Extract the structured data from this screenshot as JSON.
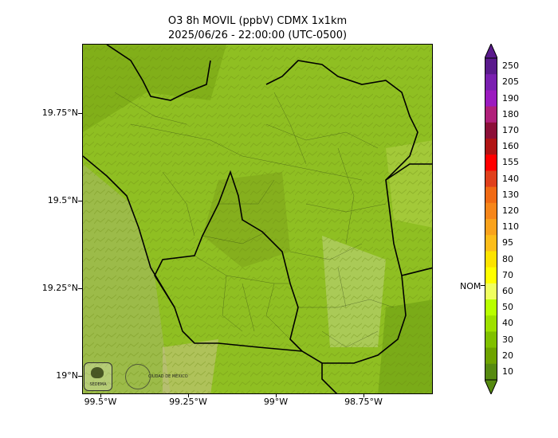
{
  "title": {
    "line1": "O3 8h MOVIL (ppbV) CDMX 1x1km",
    "line2": "2025/06/26 - 22:00:00 (UTC-0500)"
  },
  "axes": {
    "y_labels": [
      "19.75°N",
      "19.5°N",
      "19.25°N",
      "19°N"
    ],
    "x_labels": [
      "99.5°W",
      "99.25°W",
      "99°W",
      "98.75°W"
    ]
  },
  "colorbar": {
    "labels": [
      "250",
      "205",
      "190",
      "180",
      "170",
      "160",
      "155",
      "140",
      "130",
      "120",
      "110",
      "95",
      "80",
      "70",
      "60",
      "50",
      "40",
      "30",
      "20",
      "10"
    ],
    "colors": [
      "#5a1a8c",
      "#7a1fb0",
      "#9b1bbf",
      "#b0207a",
      "#8c0f38",
      "#b01414",
      "#ff0000",
      "#e0401c",
      "#f06a14",
      "#f6861a",
      "#f9a21c",
      "#fcbd1a",
      "#fde300",
      "#ffff00",
      "#f0ff60",
      "#b8ff00",
      "#9ee000",
      "#80c000",
      "#6ea300",
      "#568a10"
    ],
    "nom_label": "NOM",
    "nom_value": 65
  },
  "logos": {
    "left_text": "SEDEMA",
    "right_text": "CIUDAD DE MÉXICO"
  }
}
